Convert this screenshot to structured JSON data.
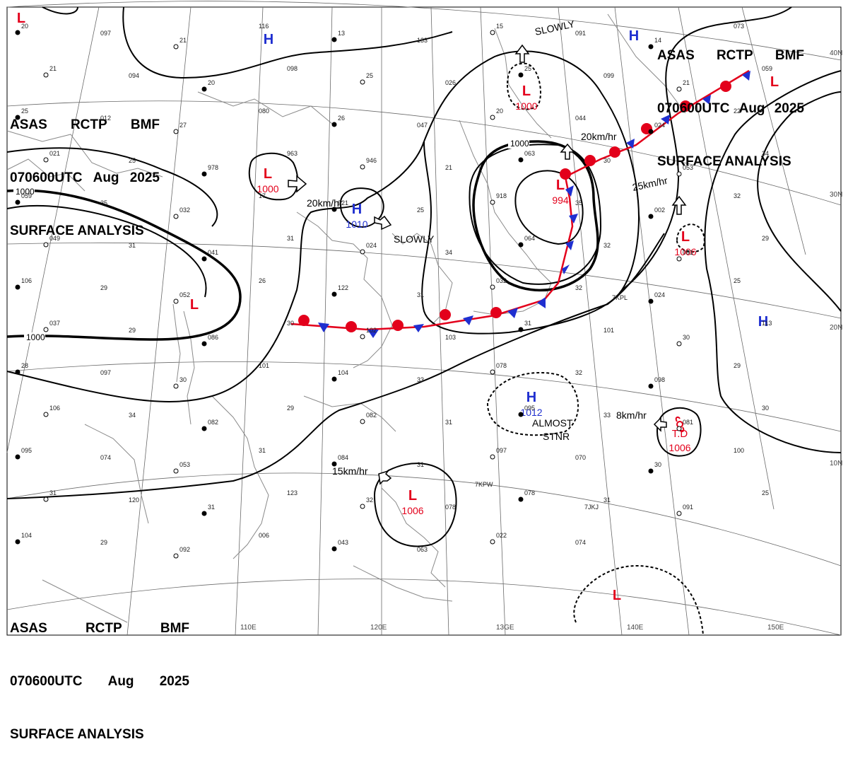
{
  "header": {
    "agency": "ASAS",
    "station": "RCTP",
    "office": "BMF",
    "time": "070600UTC",
    "month": "Aug",
    "year": "2025",
    "product": "SURFACE ANALYSIS"
  },
  "lat_labels": [
    "40N",
    "30N",
    "20N",
    "10N"
  ],
  "lon_labels": [
    "110E",
    "120E",
    "13GE",
    "140E",
    "150E"
  ],
  "isobar_labels": [
    "1000",
    "1000",
    "1000",
    "1000"
  ],
  "colors": {
    "low": "#e3001b",
    "high": "#1f2fd0",
    "warm_front": "#e3001b",
    "cold_front": "#1f2fd0",
    "ink": "#000000",
    "grid": "#666666",
    "coast": "#8a8a8a"
  },
  "pressure_centers": [
    {
      "type": "low",
      "symbol": "L",
      "value": ""
    },
    {
      "type": "low",
      "symbol": "L",
      "value": "1000"
    },
    {
      "type": "low",
      "symbol": "L",
      "value": ""
    },
    {
      "type": "low",
      "symbol": "L",
      "value": "1000"
    },
    {
      "type": "low",
      "symbol": "L",
      "value": "994"
    },
    {
      "type": "low",
      "symbol": "L",
      "value": "1006"
    },
    {
      "type": "low",
      "symbol": "L",
      "value": ""
    },
    {
      "type": "low",
      "symbol": "L",
      "value": "1006"
    },
    {
      "type": "low",
      "symbol": "L",
      "value": ""
    },
    {
      "type": "high",
      "symbol": "H",
      "value": ""
    },
    {
      "type": "high",
      "symbol": "H",
      "value": "1010"
    },
    {
      "type": "high",
      "symbol": "H",
      "value": ""
    },
    {
      "type": "high",
      "symbol": "H",
      "value": ""
    },
    {
      "type": "high",
      "symbol": "H",
      "value": "1012"
    },
    {
      "type": "tropical_depression",
      "symbol": "T.D",
      "value": "1006"
    }
  ],
  "motion_labels": [
    "SLOWLY",
    "20km/hr",
    "20km/hr",
    "SLOWLY",
    "25km/hr",
    "8km/hr",
    "ALMOST",
    "STNR",
    "15km/hr"
  ],
  "station_values": [
    "20",
    "097",
    "21",
    "116",
    "13",
    "133",
    "15",
    "091",
    "14",
    "073",
    "21",
    "094",
    "20",
    "098",
    "25",
    "026",
    "25",
    "099",
    "21",
    "059",
    "25",
    "012",
    "27",
    "080",
    "26",
    "047",
    "20",
    "044",
    "024",
    "22",
    "021",
    "25",
    "978",
    "963",
    "946",
    "21",
    "063",
    "30",
    "053",
    "34",
    "059",
    "35",
    "032",
    "17",
    "921",
    "25",
    "918",
    "35",
    "002",
    "32",
    "049",
    "31",
    "041",
    "31",
    "024",
    "34",
    "064",
    "32",
    "091",
    "29",
    "106",
    "29",
    "052",
    "26",
    "122",
    "31",
    "032",
    "32",
    "024",
    "25",
    "037",
    "29",
    "086",
    "30",
    "102",
    "103",
    "31",
    "101",
    "30",
    "113",
    "28",
    "097",
    "30",
    "101",
    "104",
    "33",
    "078",
    "32",
    "098",
    "29",
    "106",
    "34",
    "082",
    "29",
    "082",
    "31",
    "095",
    "33",
    "081",
    "30",
    "095",
    "074",
    "053",
    "31",
    "084",
    "31",
    "097",
    "070",
    "30",
    "100",
    "31",
    "120",
    "31",
    "123",
    "32",
    "078",
    "078",
    "31",
    "091",
    "25",
    "104",
    "29",
    "092",
    "006",
    "043",
    "063",
    "022",
    "074"
  ],
  "station_ids": [
    "7KPW",
    "7JKJ",
    "7KPL"
  ]
}
